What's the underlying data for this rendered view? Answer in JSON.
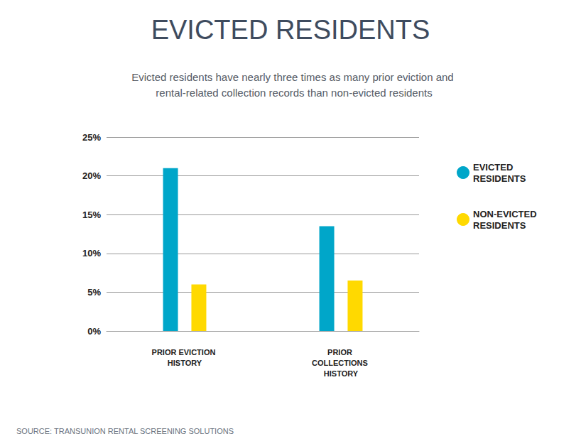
{
  "chart_data": {
    "type": "bar",
    "title": "EVICTED RESIDENTS",
    "subtitle": "Evicted residents have nearly three times as many prior eviction and rental-related collection records than non-evicted residents",
    "source": "SOURCE: TRANSUNION RENTAL SCREENING SOLUTIONS",
    "categories": [
      "PRIOR EVICTION HISTORY",
      "PRIOR COLLECTIONS HISTORY"
    ],
    "series": [
      {
        "name": "EVICTED RESIDENTS",
        "color": "#00a6c9",
        "values": [
          21,
          13.5
        ]
      },
      {
        "name": "NON-EVICTED RESIDENTS",
        "color": "#ffd900",
        "values": [
          6,
          6.5
        ]
      }
    ],
    "ylim": [
      0,
      25
    ],
    "yticks": [
      {
        "value": 0,
        "label": "0%"
      },
      {
        "value": 5,
        "label": "5%"
      },
      {
        "value": 10,
        "label": "10%"
      },
      {
        "value": 15,
        "label": "15%"
      },
      {
        "value": 20,
        "label": "20%"
      },
      {
        "value": 25,
        "label": "25%"
      }
    ],
    "grid": true,
    "legend": "right"
  }
}
